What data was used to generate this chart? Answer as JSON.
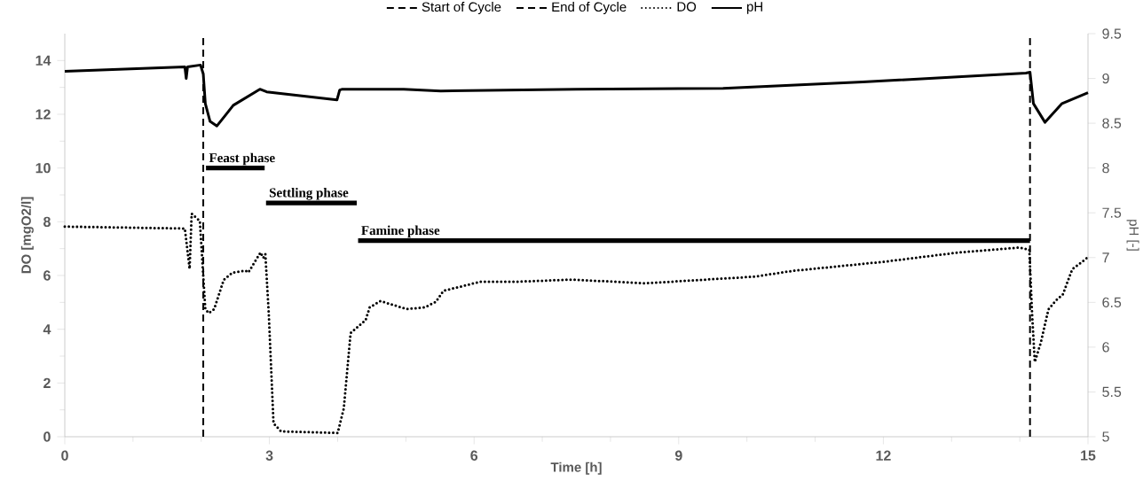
{
  "chart_data": {
    "type": "line",
    "xlabel": "Time [h]",
    "ylabel": "DO [mgO2/l]",
    "y2label": "pH [-]",
    "xlim": [
      0,
      15
    ],
    "xticks": [
      0,
      3,
      6,
      9,
      12,
      15
    ],
    "ylim": [
      0,
      15
    ],
    "yticks": [
      0,
      2,
      4,
      6,
      8,
      10,
      12,
      14
    ],
    "y2lim": [
      5,
      9.5
    ],
    "y2ticks": [
      5,
      5.5,
      6,
      6.5,
      7,
      7.5,
      8,
      8.5,
      9,
      9.5
    ],
    "legend": "top",
    "series": [
      {
        "name": "Start of Cycle",
        "color": "#000000",
        "line_style": "dashed",
        "x": [
          2.03,
          2.03
        ],
        "values": [
          0,
          15
        ]
      },
      {
        "name": "End of Cycle",
        "color": "#000000",
        "line_style": "dashed",
        "x": [
          14.15,
          14.15
        ],
        "values": [
          0,
          15
        ]
      },
      {
        "name": "DO",
        "color": "#000000",
        "line_style": "dotted",
        "x": [
          0,
          1.76,
          1.83,
          1.86,
          1.98,
          2.06,
          2.11,
          2.19,
          2.33,
          2.46,
          2.65,
          2.69,
          2.87,
          2.91,
          2.94,
          2.99,
          3.06,
          3.17,
          4.0,
          4.09,
          4.19,
          4.41,
          4.47,
          4.63,
          5.01,
          5.28,
          5.44,
          5.55,
          5.87,
          6.09,
          6.63,
          7.44,
          8.5,
          10.12,
          10.66,
          12,
          13.08,
          13.99,
          14.14,
          14.18,
          14.22,
          14.31,
          14.42,
          14.53,
          14.63,
          14.77,
          14.98
        ],
        "values": [
          7.82,
          7.75,
          6.25,
          8.3,
          8.03,
          4.75,
          4.6,
          4.75,
          5.84,
          6.11,
          6.18,
          6.11,
          6.86,
          6.66,
          6.8,
          4.6,
          0.5,
          0.2,
          0.14,
          1.05,
          3.86,
          4.34,
          4.82,
          5.05,
          4.75,
          4.82,
          5.02,
          5.43,
          5.63,
          5.77,
          5.77,
          5.85,
          5.71,
          5.96,
          6.17,
          6.51,
          6.85,
          7.04,
          6.96,
          4.6,
          2.78,
          3.52,
          4.74,
          5.07,
          5.29,
          6.24,
          6.64
        ]
      },
      {
        "name": "pH",
        "color": "#000000",
        "line_style": "solid",
        "axis": "y2",
        "x": [
          0,
          1.76,
          1.78,
          1.8,
          1.99,
          2.03,
          2.06,
          2.13,
          2.23,
          2.47,
          2.86,
          2.96,
          3.99,
          4.03,
          4.07,
          4.97,
          5.51,
          7.5,
          9.65,
          11.7,
          14.09,
          14.15,
          14.2,
          14.37,
          14.62,
          15
        ],
        "values": [
          9.08,
          9.13,
          9.0,
          9.13,
          9.15,
          9.05,
          8.72,
          8.52,
          8.47,
          8.7,
          8.88,
          8.85,
          8.76,
          8.87,
          8.88,
          8.88,
          8.86,
          8.88,
          8.89,
          8.96,
          9.06,
          9.07,
          8.72,
          8.51,
          8.72,
          8.84
        ]
      },
      {
        "color": "#000000",
        "line_style": "solid",
        "x": [
          2.07,
          2.93
        ],
        "values": [
          10,
          10
        ]
      },
      {
        "color": "#000000",
        "line_style": "solid",
        "x": [
          2.95,
          4.28
        ],
        "values": [
          8.7,
          8.7
        ]
      },
      {
        "color": "#000000",
        "line_style": "solid",
        "x": [
          4.3,
          14.15
        ],
        "values": [
          7.3,
          7.3
        ]
      }
    ],
    "annotations": [
      {
        "text": "Feast phase",
        "x": 2.07,
        "y": 10
      },
      {
        "text": "Settling phase",
        "x": 2.95,
        "y": 8.7
      },
      {
        "text": "Famine phase",
        "x": 4.3,
        "y": 7.3
      }
    ]
  }
}
